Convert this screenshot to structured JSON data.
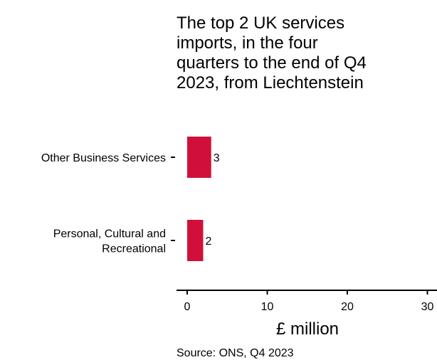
{
  "chart_data": {
    "type": "bar",
    "orientation": "horizontal",
    "title_lines": [
      "The top 2 UK services",
      "imports, in the four",
      "quarters to the end of Q4",
      "2023, from Liechtenstein"
    ],
    "categories": [
      [
        "Other Business Services"
      ],
      [
        "Personal, Cultural and",
        "Recreational"
      ]
    ],
    "values": [
      3,
      2
    ],
    "data_labels": [
      "3",
      "2"
    ],
    "xlabel": "£ million",
    "xlim": [
      0,
      30
    ],
    "xticks": [
      0,
      10,
      20,
      30
    ],
    "xtick_labels": [
      "0",
      "10",
      "20",
      "30"
    ],
    "bar_color": "#d0103a",
    "grid": false,
    "source": "Source: ONS, Q4 2023"
  }
}
